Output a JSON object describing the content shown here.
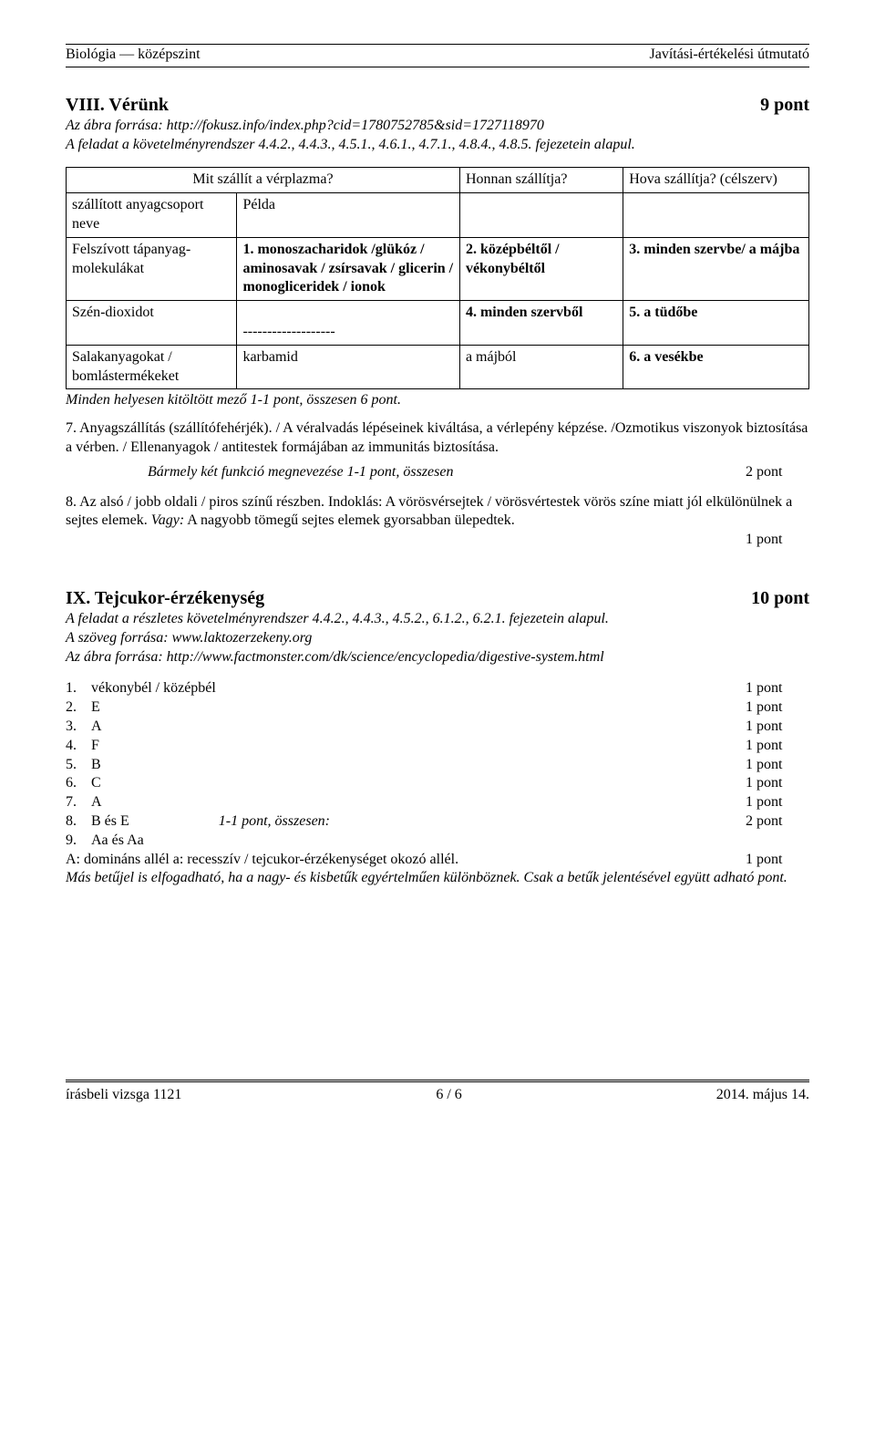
{
  "header": {
    "left": "Biológia — középszint",
    "right": "Javítási-értékelési útmutató"
  },
  "section8": {
    "title": "VIII. Vérünk",
    "points": "9 pont",
    "source_line": "Az ábra forrása: http://fokusz.info/index.php?cid=1780752785&sid=1727118970",
    "req_line": "A feladat a követelményrendszer 4.4.2., 4.4.3., 4.5.1., 4.6.1., 4.7.1., 4.8.4., 4.8.5. fejezetein alapul.",
    "table": {
      "h_col2": "Mit szállít a vérplazma?",
      "h_col3": "Honnan szállítja?",
      "h_col4": "Hova szállítja? (célszerv)",
      "r1c1": "szállított anyagcsoport neve",
      "r1c2": "Példa",
      "r2c1": "Felszívott tápanyag-molekulákat",
      "r2c2": "1. monoszacharidok /glükóz / aminosavak / zsírsavak / glicerin / monogliceridek / ionok",
      "r2c3": "2. középbéltől / vékonybéltől",
      "r2c4": "3. minden szervbe/ a májba",
      "r3c1": "Szén-dioxidot",
      "r3c2": "-------------------",
      "r3c3": "4. minden szervből",
      "r3c4": "5. a tüdőbe",
      "r4c1": "Salakanyagokat / bomlástermékeket",
      "r4c2": "karbamid",
      "r4c3": "a májból",
      "r4c4": "6. a vesékbe"
    },
    "after_table": "Minden helyesen kitöltött mező 1-1 pont, összesen 6 pont.",
    "p7": "7. Anyagszállítás (szállítófehérjék). / A véralvadás lépéseinek kiváltása, a vérlepény képzése. /Ozmotikus viszonyok biztosítása a vérben. / Ellenanyagok / antitestek formájában az immunitás biztosítása.",
    "p7_score_label": "Bármely két funkció megnevezése 1-1 pont, összesen",
    "p7_score": "2 pont",
    "p8a": "8.  Az alsó / jobb oldali / piros színű részben. Indoklás: A vörösvérsejtek / vörösvértestek vörös színe miatt jól elkülönülnek a sejtes elemek. ",
    "p8b": "Vagy:",
    "p8c": " A nagyobb tömegű sejtes elemek gyorsabban ülepedtek.",
    "p8_score": "1 pont"
  },
  "section9": {
    "title": "IX. Tejcukor-érzékenység",
    "points": "10 pont",
    "req_line": "A feladat a részletes követelményrendszer 4.4.2., 4.4.3., 4.5.2., 6.1.2., 6.2.1. fejezetein alapul.",
    "src1": "A szöveg forrása: www.laktozerzekeny.org",
    "src2": "Az ábra forrása: http://www.factmonster.com/dk/science/encyclopedia/digestive-system.html",
    "answers": [
      {
        "n": "1.",
        "t": "vékonybél / középbél",
        "p": "1 pont"
      },
      {
        "n": "2.",
        "t": "E",
        "p": "1 pont"
      },
      {
        "n": "3.",
        "t": "A",
        "p": "1 pont"
      },
      {
        "n": "4.",
        "t": "F",
        "p": "1 pont"
      },
      {
        "n": "5.",
        "t": "B",
        "p": "1 pont"
      },
      {
        "n": "6.",
        "t": "C",
        "p": "1 pont"
      },
      {
        "n": "7.",
        "t": "A",
        "p": "1 pont"
      }
    ],
    "a8_num": "8.",
    "a8_txt": "B és E",
    "a8_mid": "1-1 pont, összesen:",
    "a8_pts": "2 pont",
    "a9_num": "9.",
    "a9_txt": "Aa  és Aa",
    "a9_line2": "A: domináns allél  a: recesszív / tejcukor-érzékenységet okozó allél.",
    "a9_pts": "1 pont",
    "note": "Más betűjel is elfogadható, ha a nagy- és kisbetűk egyértelműen különböznek. Csak a betűk jelentésével együtt adható pont."
  },
  "footer": {
    "left": "írásbeli vizsga 1121",
    "center": "6 / 6",
    "right": "2014. május 14."
  }
}
